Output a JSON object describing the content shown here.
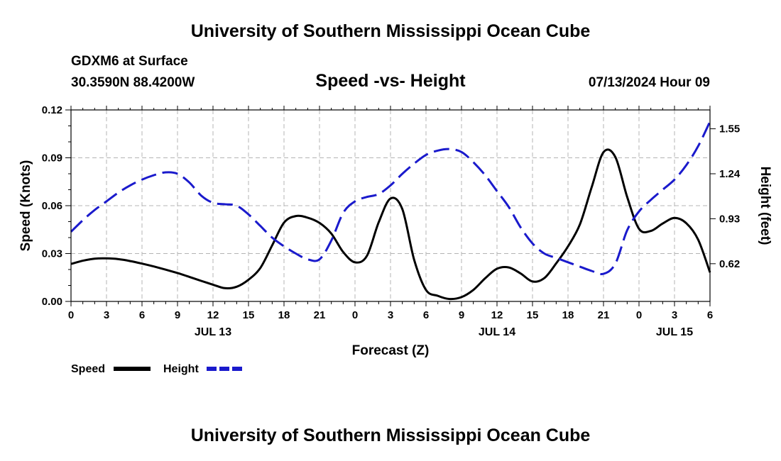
{
  "header": {
    "title": "University of Southern Mississippi Ocean Cube",
    "station": "GDXM6 at Surface",
    "coordinates": "30.3590N  88.4200W",
    "timestamp": "07/13/2024 Hour 09",
    "footer_title": "University of Southern Mississippi Ocean Cube"
  },
  "colors": {
    "speed": "#000000",
    "height": "#1a1acc",
    "grid": "#b4b4b4"
  },
  "chart_data": {
    "type": "line",
    "title": "Speed -vs- Height",
    "xlabel": "Forecast (Z)",
    "ylabel": "Speed (Knots)",
    "y2label": "Height (feet)",
    "grid": true,
    "x_range": [
      0,
      54
    ],
    "x_ticks": [
      {
        "x": 0,
        "label": "0"
      },
      {
        "x": 3,
        "label": "3"
      },
      {
        "x": 6,
        "label": "6"
      },
      {
        "x": 9,
        "label": "9"
      },
      {
        "x": 12,
        "label": "12"
      },
      {
        "x": 15,
        "label": "15"
      },
      {
        "x": 18,
        "label": "18"
      },
      {
        "x": 21,
        "label": "21"
      },
      {
        "x": 24,
        "label": "0"
      },
      {
        "x": 27,
        "label": "3"
      },
      {
        "x": 30,
        "label": "6"
      },
      {
        "x": 33,
        "label": "9"
      },
      {
        "x": 36,
        "label": "12"
      },
      {
        "x": 39,
        "label": "15"
      },
      {
        "x": 42,
        "label": "18"
      },
      {
        "x": 45,
        "label": "21"
      },
      {
        "x": 48,
        "label": "0"
      },
      {
        "x": 51,
        "label": "3"
      },
      {
        "x": 54,
        "label": "6"
      }
    ],
    "date_labels": [
      {
        "x": 12,
        "label": "JUL 13"
      },
      {
        "x": 36,
        "label": "JUL 14"
      },
      {
        "x": 51,
        "label": "JUL 15"
      }
    ],
    "y_left": {
      "min": 0,
      "max": 0.12,
      "ticks": [
        "0.00",
        "0.03",
        "0.06",
        "0.09",
        "0.12"
      ]
    },
    "y_right": {
      "min": 0.36,
      "max": 1.68,
      "ticks": [
        "0.62",
        "0.93",
        "1.24",
        "1.55"
      ]
    },
    "series": [
      {
        "name": "Speed",
        "axis": "left",
        "style": "solid",
        "x": [
          0,
          1,
          2,
          3,
          4,
          5,
          6,
          7,
          8,
          9,
          10,
          11,
          12,
          13,
          14,
          15,
          16,
          17,
          18,
          19,
          20,
          21,
          22,
          23,
          24,
          25,
          26,
          27,
          28,
          29,
          30,
          31,
          32,
          33,
          34,
          35,
          36,
          37,
          38,
          39,
          40,
          41,
          42,
          43,
          44,
          45,
          46,
          47,
          48,
          49,
          50,
          51,
          52,
          53,
          54
        ],
        "values": [
          0.0235,
          0.0255,
          0.0268,
          0.027,
          0.0265,
          0.0253,
          0.0237,
          0.0219,
          0.0199,
          0.0178,
          0.0154,
          0.0129,
          0.0105,
          0.0083,
          0.0092,
          0.0136,
          0.021,
          0.0351,
          0.0494,
          0.0535,
          0.0525,
          0.0492,
          0.0425,
          0.031,
          0.0245,
          0.0285,
          0.0495,
          0.0645,
          0.0578,
          0.0261,
          0.0072,
          0.0035,
          0.0015,
          0.0027,
          0.0072,
          0.0145,
          0.0205,
          0.0213,
          0.0175,
          0.0125,
          0.0146,
          0.0238,
          0.0345,
          0.0482,
          0.0715,
          0.0935,
          0.0905,
          0.0655,
          0.0455,
          0.0442,
          0.0488,
          0.0523,
          0.049,
          0.0387,
          0.0182
        ]
      },
      {
        "name": "Height",
        "axis": "right",
        "style": "dashed",
        "x": [
          0,
          1,
          2,
          3,
          4,
          5,
          6,
          7,
          8,
          9,
          10,
          11,
          12,
          13,
          14,
          15,
          16,
          17,
          18,
          19,
          20,
          21,
          22,
          23,
          24,
          25,
          26,
          27,
          28,
          29,
          30,
          31,
          32,
          33,
          34,
          35,
          36,
          37,
          38,
          39,
          40,
          41,
          42,
          43,
          44,
          45,
          46,
          47,
          48,
          49,
          50,
          51,
          52,
          53,
          54
        ],
        "values": [
          0.84,
          0.92,
          0.99,
          1.05,
          1.11,
          1.16,
          1.2,
          1.23,
          1.25,
          1.24,
          1.18,
          1.09,
          1.04,
          1.03,
          1.02,
          0.96,
          0.88,
          0.8,
          0.74,
          0.69,
          0.65,
          0.65,
          0.78,
          0.97,
          1.05,
          1.08,
          1.1,
          1.16,
          1.24,
          1.31,
          1.37,
          1.4,
          1.41,
          1.39,
          1.32,
          1.23,
          1.12,
          1.01,
          0.87,
          0.76,
          0.69,
          0.66,
          0.63,
          0.6,
          0.57,
          0.55,
          0.62,
          0.85,
          0.98,
          1.06,
          1.13,
          1.2,
          1.3,
          1.43,
          1.6
        ]
      }
    ],
    "legend": {
      "position": "bottom-left",
      "items": [
        "Speed",
        "Height"
      ]
    }
  }
}
